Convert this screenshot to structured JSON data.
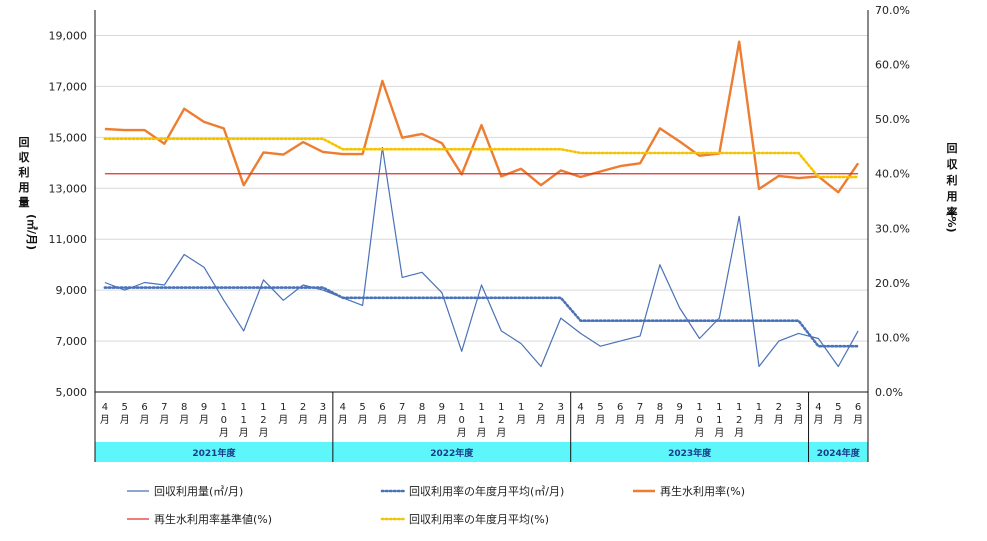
{
  "chart_data": {
    "type": "line",
    "left_axis": {
      "label_chars": [
        "回",
        "収",
        "利",
        "用",
        "量"
      ],
      "unit": "(㎥/月)",
      "ticks": [
        "5,000",
        "7,000",
        "9,000",
        "11,000",
        "13,000",
        "15,000",
        "17,000",
        "19,000"
      ],
      "range": [
        5000,
        20000
      ]
    },
    "right_axis": {
      "label_chars": [
        "回",
        "収",
        "利",
        "用",
        "率"
      ],
      "unit": "(%)",
      "ticks": [
        "0.0%",
        "10.0%",
        "20.0%",
        "30.0%",
        "40.0%",
        "50.0%",
        "60.0%",
        "70.0%"
      ],
      "range": [
        0,
        70
      ]
    },
    "months": [
      [
        "4",
        "月"
      ],
      [
        "5",
        "月"
      ],
      [
        "6",
        "月"
      ],
      [
        "7",
        "月"
      ],
      [
        "8",
        "月"
      ],
      [
        "9",
        "月"
      ],
      [
        "1",
        "0",
        "月"
      ],
      [
        "1",
        "1",
        "月"
      ],
      [
        "1",
        "2",
        "月"
      ],
      [
        "1",
        "月"
      ],
      [
        "2",
        "月"
      ],
      [
        "3",
        "月"
      ],
      [
        "4",
        "月"
      ],
      [
        "5",
        "月"
      ],
      [
        "6",
        "月"
      ],
      [
        "7",
        "月"
      ],
      [
        "8",
        "月"
      ],
      [
        "9",
        "月"
      ],
      [
        "1",
        "0",
        "月"
      ],
      [
        "1",
        "1",
        "月"
      ],
      [
        "1",
        "2",
        "月"
      ],
      [
        "1",
        "月"
      ],
      [
        "2",
        "月"
      ],
      [
        "3",
        "月"
      ],
      [
        "4",
        "月"
      ],
      [
        "5",
        "月"
      ],
      [
        "6",
        "月"
      ],
      [
        "7",
        "月"
      ],
      [
        "8",
        "月"
      ],
      [
        "9",
        "月"
      ],
      [
        "1",
        "0",
        "月"
      ],
      [
        "1",
        "1",
        "月"
      ],
      [
        "1",
        "2",
        "月"
      ],
      [
        "1",
        "月"
      ],
      [
        "2",
        "月"
      ],
      [
        "3",
        "月"
      ],
      [
        "4",
        "月"
      ],
      [
        "5",
        "月"
      ],
      [
        "6",
        "月"
      ]
    ],
    "fiscal_years": [
      {
        "label": "2021年度",
        "start": 0,
        "count": 12
      },
      {
        "label": "2022年度",
        "start": 12,
        "count": 12
      },
      {
        "label": "2023年度",
        "start": 24,
        "count": 12
      },
      {
        "label": "2024年度",
        "start": 36,
        "count": 3
      }
    ],
    "series": [
      {
        "name": "回収利用量(㎥/月)",
        "axis": "left",
        "color": "#4a72b8",
        "style": "solid",
        "width": 1.2,
        "values": [
          9300,
          9000,
          9300,
          9200,
          10400,
          9900,
          8600,
          7400,
          9400,
          8600,
          9200,
          9000,
          8700,
          8400,
          14600,
          9500,
          9700,
          8900,
          6600,
          9200,
          7400,
          6900,
          6000,
          7900,
          7300,
          6800,
          7000,
          7200,
          10000,
          8300,
          7100,
          7900,
          11900,
          6000,
          7000,
          7300,
          7100,
          6000,
          7400
        ]
      },
      {
        "name": "回収利用率の年度月平均(㎥/月)",
        "axis": "left",
        "color": "#4a72b8",
        "style": "dotted",
        "width": 2.6,
        "values": [
          9100,
          9100,
          9100,
          9100,
          9100,
          9100,
          9100,
          9100,
          9100,
          9100,
          9100,
          9100,
          8700,
          8700,
          8700,
          8700,
          8700,
          8700,
          8700,
          8700,
          8700,
          8700,
          8700,
          8700,
          7800,
          7800,
          7800,
          7800,
          7800,
          7800,
          7800,
          7800,
          7800,
          7800,
          7800,
          7800,
          6800,
          6800,
          6800
        ]
      },
      {
        "name": "再生水利用率(%)",
        "axis": "right",
        "color": "#ed7d31",
        "style": "solid",
        "width": 2.4,
        "values": [
          48.2,
          48.0,
          48.0,
          45.5,
          51.9,
          49.5,
          48.3,
          37.9,
          43.9,
          43.5,
          45.8,
          44.0,
          43.6,
          43.6,
          57.0,
          46.6,
          47.3,
          45.6,
          39.9,
          48.9,
          39.5,
          40.9,
          37.9,
          40.6,
          39.4,
          40.4,
          41.4,
          41.9,
          48.3,
          45.9,
          43.3,
          43.7,
          64.2,
          37.2,
          39.6,
          39.2,
          39.5,
          36.6,
          41.9
        ]
      },
      {
        "name": "再生水利用率基準値(%)",
        "axis": "right",
        "color": "#e03030",
        "style": "solid",
        "width": 1.2,
        "values": [
          40.0,
          40.0,
          40.0,
          40.0,
          40.0,
          40.0,
          40.0,
          40.0,
          40.0,
          40.0,
          40.0,
          40.0,
          40.0,
          40.0,
          40.0,
          40.0,
          40.0,
          40.0,
          40.0,
          40.0,
          40.0,
          40.0,
          40.0,
          40.0,
          40.0,
          40.0,
          40.0,
          40.0,
          40.0,
          40.0,
          40.0,
          40.0,
          40.0,
          40.0,
          40.0,
          40.0,
          40.0,
          40.0,
          40.0
        ]
      },
      {
        "name": "回収利用率の年度月平均(%)",
        "axis": "right",
        "color": "#f5c400",
        "style": "dotted",
        "width": 2.6,
        "values": [
          46.4,
          46.4,
          46.4,
          46.4,
          46.4,
          46.4,
          46.4,
          46.4,
          46.4,
          46.4,
          46.4,
          46.4,
          44.5,
          44.5,
          44.5,
          44.5,
          44.5,
          44.5,
          44.5,
          44.5,
          44.5,
          44.5,
          44.5,
          44.5,
          43.8,
          43.8,
          43.8,
          43.8,
          43.8,
          43.8,
          43.8,
          43.8,
          43.8,
          43.8,
          43.8,
          43.8,
          39.4,
          39.4,
          39.4
        ]
      }
    ],
    "legend": [
      {
        "label": "回収利用量(㎥/月)",
        "series": 0
      },
      {
        "label": "回収利用率の年度月平均(㎥/月)",
        "series": 1
      },
      {
        "label": "再生水利用率(%)",
        "series": 2
      },
      {
        "label": "再生水利用率基準値(%)",
        "series": 3
      },
      {
        "label": "回収利用率の年度月平均(%)",
        "series": 4
      }
    ],
    "colors": {
      "fiscal_band": "#5df6fb",
      "fiscal_band_text": "#1a3a8a",
      "axis": "#111111",
      "grid": "#d9d9d9"
    }
  }
}
